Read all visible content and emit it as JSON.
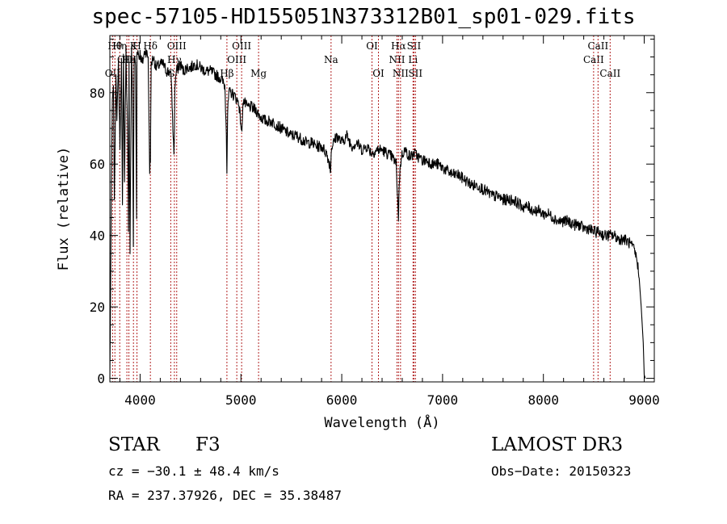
{
  "chart_data": {
    "type": "line",
    "title": "spec-57105-HD155051N373312B01_sp01-029.fits",
    "xlabel": "Wavelength (Å)",
    "ylabel": "Flux (relative)",
    "xlim": [
      3700,
      9100
    ],
    "ylim": [
      -1,
      96
    ],
    "x_ticks": [
      4000,
      5000,
      6000,
      7000,
      8000,
      9000
    ],
    "y_ticks": [
      0,
      20,
      40,
      60,
      80
    ],
    "grid": false,
    "series": [
      {
        "name": "flux",
        "x": [
          3700,
          3705,
          3715,
          3725,
          3735,
          3745,
          3760,
          3770,
          3785,
          3800,
          3815,
          3825,
          3835,
          3845,
          3860,
          3875,
          3885,
          3890,
          3900,
          3915,
          3925,
          3933,
          3940,
          3955,
          3965,
          3968,
          3975,
          3990,
          4000,
          4020,
          4050,
          4080,
          4095,
          4102,
          4110,
          4130,
          4160,
          4200,
          4230,
          4260,
          4290,
          4310,
          4325,
          4335,
          4340,
          4345,
          4360,
          4380,
          4400,
          4430,
          4460,
          4500,
          4550,
          4600,
          4650,
          4700,
          4750,
          4800,
          4840,
          4855,
          4861,
          4868,
          4880,
          4900,
          4940,
          4980,
          5010,
          5015,
          5020,
          5060,
          5100,
          5150,
          5200,
          5250,
          5300,
          5350,
          5400,
          5450,
          5500,
          5550,
          5600,
          5650,
          5700,
          5750,
          5800,
          5850,
          5880,
          5890,
          5895,
          5900,
          5920,
          5950,
          6000,
          6050,
          6100,
          6150,
          6200,
          6250,
          6300,
          6350,
          6400,
          6450,
          6500,
          6540,
          6555,
          6563,
          6570,
          6590,
          6620,
          6680,
          6720,
          6760,
          6800,
          6850,
          6900,
          6950,
          7000,
          7050,
          7100,
          7150,
          7200,
          7250,
          7300,
          7350,
          7400,
          7450,
          7500,
          7550,
          7600,
          7650,
          7700,
          7750,
          7800,
          7850,
          7900,
          7950,
          8000,
          8050,
          8100,
          8150,
          8200,
          8250,
          8300,
          8350,
          8400,
          8450,
          8500,
          8550,
          8600,
          8650,
          8700,
          8750,
          8800,
          8850,
          8900,
          8930,
          8950,
          8970,
          8990,
          9000,
          9010
        ],
        "values": [
          0,
          15,
          55,
          78,
          82,
          50,
          85,
          72,
          88,
          65,
          90,
          48,
          90,
          55,
          92,
          70,
          40,
          88,
          36,
          92,
          78,
          37,
          90,
          88,
          45,
          91,
          92,
          90,
          91,
          88,
          92,
          90,
          58,
          62,
          88,
          90,
          87,
          88,
          88,
          86,
          86,
          84,
          70,
          64,
          67,
          82,
          86,
          87,
          88,
          86,
          87,
          87,
          88,
          87,
          86,
          86,
          85,
          84,
          82,
          70,
          58,
          74,
          80,
          80,
          79,
          77,
          68,
          74,
          78,
          76,
          76,
          75,
          73,
          72,
          72,
          71,
          70,
          69,
          68,
          68,
          67,
          66,
          66,
          65,
          65,
          63,
          60,
          58,
          63,
          65,
          66,
          68,
          66,
          68,
          65,
          66,
          64,
          65,
          63,
          64,
          64,
          63,
          62,
          60,
          50,
          45,
          55,
          62,
          64,
          62,
          63,
          62,
          61,
          61,
          60,
          60,
          59,
          58,
          57,
          57,
          56,
          55,
          54,
          54,
          53,
          52,
          51,
          51,
          50,
          50,
          50,
          49,
          48,
          48,
          47,
          47,
          46,
          46,
          45,
          44,
          44,
          44,
          43,
          43,
          42,
          42,
          41,
          41,
          40,
          40,
          40,
          39,
          39,
          38,
          36,
          33,
          28,
          20,
          10,
          1,
          0
        ]
      }
    ],
    "lines": [
      {
        "wl": 3727,
        "label": "OII",
        "tier": 3
      },
      {
        "wl": 3750,
        "label": "Hθ",
        "tier": 1
      },
      {
        "wl": 3798,
        "label": "Hη",
        "tier": 1
      },
      {
        "wl": 3869,
        "label": "OIII",
        "tier": 2
      },
      {
        "wl": 3889,
        "label": "Hε",
        "tier": 2
      },
      {
        "wl": 3934,
        "label": "K",
        "tier": 1
      },
      {
        "wl": 3969,
        "label": "H",
        "tier": 1
      },
      {
        "wl": 4102,
        "label": "Hδ",
        "tier": 1
      },
      {
        "wl": 4304,
        "label": "G",
        "tier": 3
      },
      {
        "wl": 4340,
        "label": "Hγ",
        "tier": 2
      },
      {
        "wl": 4363,
        "label": "OIII",
        "tier": 1
      },
      {
        "wl": 4861,
        "label": "Hβ",
        "tier": 3
      },
      {
        "wl": 4959,
        "label": "OIII",
        "tier": 2
      },
      {
        "wl": 5007,
        "label": "OIII",
        "tier": 1
      },
      {
        "wl": 5175,
        "label": "Mg",
        "tier": 3
      },
      {
        "wl": 5894,
        "label": "Na",
        "tier": 2
      },
      {
        "wl": 6300,
        "label": "OI",
        "tier": 1
      },
      {
        "wl": 6364,
        "label": "OI",
        "tier": 3
      },
      {
        "wl": 6548,
        "label": "NII",
        "tier": 2
      },
      {
        "wl": 6563,
        "label": "Hα",
        "tier": 1
      },
      {
        "wl": 6583,
        "label": "NII",
        "tier": 3
      },
      {
        "wl": 6707,
        "label": "Li",
        "tier": 2
      },
      {
        "wl": 6716,
        "label": "SII",
        "tier": 1
      },
      {
        "wl": 6731,
        "label": "SII",
        "tier": 3
      },
      {
        "wl": 8498,
        "label": "CaII",
        "tier": 2
      },
      {
        "wl": 8542,
        "label": "CaII",
        "tier": 1
      },
      {
        "wl": 8662,
        "label": "CaII",
        "tier": 3
      }
    ]
  },
  "info": {
    "object_type": "STAR",
    "spectral_class": "F3",
    "survey": "LAMOST DR3",
    "cz": "cz = −30.1 ± 48.4 km/s",
    "obs_date": "Obs−Date: 20150323",
    "coords": "RA = 237.37926, DEC =  35.38487"
  },
  "colors": {
    "spectrum": "#000000",
    "line_markers": "#b22222",
    "axes": "#000000",
    "background": "#ffffff"
  }
}
